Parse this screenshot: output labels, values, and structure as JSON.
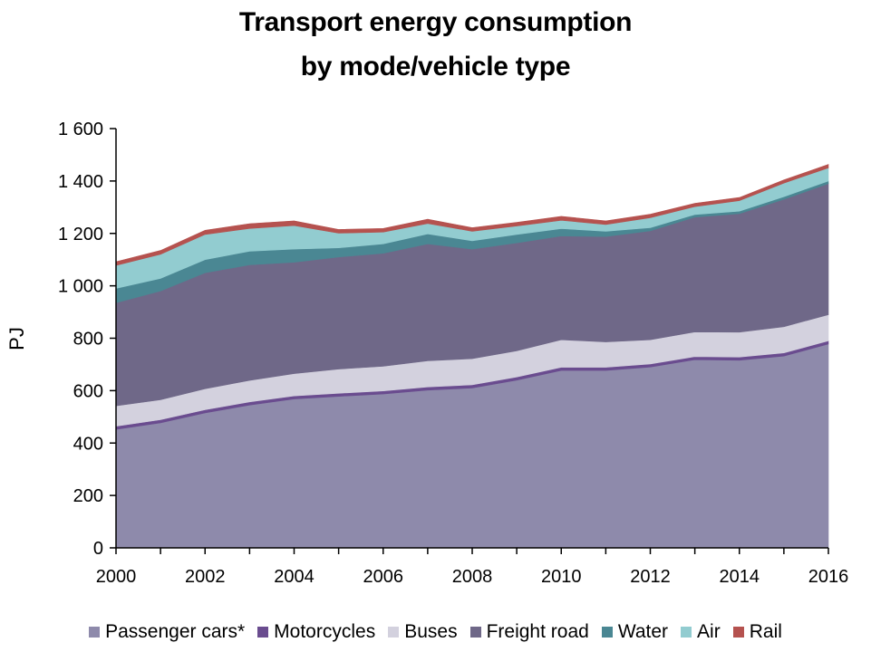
{
  "chart_data": {
    "type": "area",
    "stacked": true,
    "title_line1": "Transport energy consumption",
    "title_line2": "by mode/vehicle type",
    "ylabel": "PJ",
    "xlabel": "",
    "ylim": [
      0,
      1600
    ],
    "yticks": [
      "0",
      "200",
      "400",
      "600",
      "800",
      "1 000",
      "1 200",
      "1 400",
      "1 600"
    ],
    "yticks_values": [
      0,
      200,
      400,
      600,
      800,
      1000,
      1200,
      1400,
      1600
    ],
    "xlim": [
      2000,
      2016
    ],
    "xticks": [
      "2000",
      "2002",
      "2004",
      "2006",
      "2008",
      "2010",
      "2012",
      "2014",
      "2016"
    ],
    "xticks_values": [
      2000,
      2002,
      2004,
      2006,
      2008,
      2010,
      2012,
      2014,
      2016
    ],
    "grid": false,
    "legend_position": "bottom",
    "x": [
      2000,
      2001,
      2002,
      2003,
      2004,
      2005,
      2006,
      2007,
      2008,
      2009,
      2010,
      2011,
      2012,
      2013,
      2014,
      2015,
      2016
    ],
    "series": [
      {
        "name": "Passenger cars*",
        "color": "#8e8aab",
        "values": [
          452,
          477,
          515,
          545,
          568,
          578,
          587,
          602,
          610,
          640,
          677,
          677,
          690,
          718,
          716,
          732,
          778
        ]
      },
      {
        "name": "Motorcycles",
        "color": "#6a4c8f",
        "values": [
          12,
          12,
          12,
          12,
          12,
          12,
          12,
          12,
          12,
          12,
          12,
          12,
          12,
          12,
          12,
          12,
          12
        ]
      },
      {
        "name": "Buses",
        "color": "#d3d1de",
        "values": [
          78,
          76,
          80,
          82,
          85,
          92,
          94,
          100,
          100,
          100,
          105,
          97,
          92,
          94,
          95,
          100,
          100
        ]
      },
      {
        "name": "Freight road",
        "color": "#6f6888",
        "values": [
          393,
          415,
          443,
          441,
          425,
          428,
          431,
          446,
          418,
          412,
          396,
          402,
          416,
          438,
          452,
          486,
          500
        ]
      },
      {
        "name": "Water",
        "color": "#4a8793",
        "values": [
          55,
          48,
          50,
          52,
          50,
          35,
          36,
          38,
          32,
          32,
          28,
          20,
          12,
          10,
          10,
          10,
          10
        ]
      },
      {
        "name": "Air",
        "color": "#92ccd0",
        "values": [
          88,
          92,
          96,
          87,
          90,
          56,
          45,
          40,
          36,
          32,
          32,
          26,
          38,
          30,
          40,
          52,
          50
        ]
      },
      {
        "name": "Rail",
        "color": "#b5524f",
        "values": [
          14,
          15,
          16,
          18,
          18,
          14,
          14,
          16,
          14,
          14,
          15,
          14,
          13,
          13,
          12,
          12,
          13
        ]
      }
    ]
  }
}
